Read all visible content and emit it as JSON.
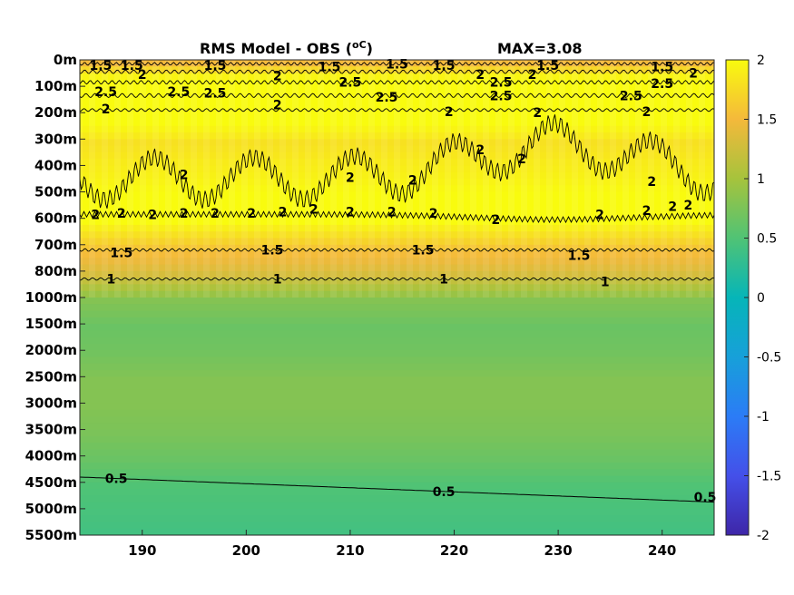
{
  "chart_data": {
    "type": "heatmap",
    "title": "RMS Model - OBS (",
    "title_unit": "oC",
    "title_close": ")",
    "max_label": "MAX=3.08",
    "x_ticks": [
      190,
      200,
      210,
      220,
      230,
      240
    ],
    "xlim": [
      184,
      245
    ],
    "y_ticks": [
      "0m",
      "100m",
      "200m",
      "300m",
      "400m",
      "500m",
      "600m",
      "700m",
      "800m",
      "1000m",
      "1500m",
      "2000m",
      "2500m",
      "3000m",
      "3500m",
      "4000m",
      "4500m",
      "5000m",
      "5500m"
    ],
    "colorbar": {
      "min": -2,
      "max": 2,
      "ticks": [
        "2",
        "1.5",
        "1",
        "0.5",
        "0",
        "-0.5",
        "-1",
        "-1.5",
        "-2"
      ]
    },
    "depth_profile": [
      {
        "depth": "0m",
        "value": 1.5
      },
      {
        "depth": "100m",
        "value": 2.4
      },
      {
        "depth": "200m",
        "value": 2.1
      },
      {
        "depth": "300m",
        "value": 1.8
      },
      {
        "depth": "400m",
        "value": 1.9
      },
      {
        "depth": "500m",
        "value": 2.0
      },
      {
        "depth": "600m",
        "value": 2.0
      },
      {
        "depth": "700m",
        "value": 1.6
      },
      {
        "depth": "800m",
        "value": 1.3
      },
      {
        "depth": "1000m",
        "value": 0.8
      },
      {
        "depth": "1500m",
        "value": 0.65
      },
      {
        "depth": "2000m",
        "value": 0.7
      },
      {
        "depth": "2500m",
        "value": 0.8
      },
      {
        "depth": "3000m",
        "value": 0.8
      },
      {
        "depth": "3500m",
        "value": 0.75
      },
      {
        "depth": "4000m",
        "value": 0.65
      },
      {
        "depth": "4500m",
        "value": 0.5
      },
      {
        "depth": "5000m",
        "value": 0.45
      },
      {
        "depth": "5500m",
        "value": 0.4
      }
    ],
    "contour_labels": [
      {
        "text": "1.5",
        "x": 186,
        "depth_index": 0.2
      },
      {
        "text": "1.5",
        "x": 189,
        "depth_index": 0.2
      },
      {
        "text": "1.5",
        "x": 197,
        "depth_index": 0.2
      },
      {
        "text": "1.5",
        "x": 208,
        "depth_index": 0.25
      },
      {
        "text": "1.5",
        "x": 214.5,
        "depth_index": 0.15
      },
      {
        "text": "1.5",
        "x": 219,
        "depth_index": 0.2
      },
      {
        "text": "1.5",
        "x": 229,
        "depth_index": 0.2
      },
      {
        "text": "1.5",
        "x": 240,
        "depth_index": 0.25
      },
      {
        "text": "2",
        "x": 243,
        "depth_index": 0.5
      },
      {
        "text": "2",
        "x": 190,
        "depth_index": 0.55
      },
      {
        "text": "2",
        "x": 203,
        "depth_index": 0.6
      },
      {
        "text": "2",
        "x": 222.5,
        "depth_index": 0.55
      },
      {
        "text": "2",
        "x": 227.5,
        "depth_index": 0.55
      },
      {
        "text": "2.5",
        "x": 186.5,
        "depth_index": 1.2
      },
      {
        "text": "2.5",
        "x": 193.5,
        "depth_index": 1.2
      },
      {
        "text": "2.5",
        "x": 197,
        "depth_index": 1.25
      },
      {
        "text": "2.5",
        "x": 210,
        "depth_index": 0.85
      },
      {
        "text": "2.5",
        "x": 213.5,
        "depth_index": 1.4
      },
      {
        "text": "2.5",
        "x": 224.5,
        "depth_index": 0.85
      },
      {
        "text": "2.5",
        "x": 224.5,
        "depth_index": 1.35
      },
      {
        "text": "2.5",
        "x": 237,
        "depth_index": 1.35
      },
      {
        "text": "2.5",
        "x": 240,
        "depth_index": 0.9
      },
      {
        "text": "2",
        "x": 186.5,
        "depth_index": 1.85
      },
      {
        "text": "2",
        "x": 203,
        "depth_index": 1.7
      },
      {
        "text": "2",
        "x": 219.5,
        "depth_index": 1.95
      },
      {
        "text": "2",
        "x": 228,
        "depth_index": 2.0
      },
      {
        "text": "2",
        "x": 238.5,
        "depth_index": 1.95
      },
      {
        "text": "2",
        "x": 222.5,
        "depth_index": 3.4
      },
      {
        "text": "2",
        "x": 226.5,
        "depth_index": 3.75
      },
      {
        "text": "2",
        "x": 194,
        "depth_index": 4.35
      },
      {
        "text": "2",
        "x": 210,
        "depth_index": 4.45
      },
      {
        "text": "2",
        "x": 216,
        "depth_index": 4.55
      },
      {
        "text": "2",
        "x": 239,
        "depth_index": 4.6
      },
      {
        "text": "2",
        "x": 185.5,
        "depth_index": 5.85
      },
      {
        "text": "2",
        "x": 188,
        "depth_index": 5.8
      },
      {
        "text": "2",
        "x": 191,
        "depth_index": 5.85
      },
      {
        "text": "2",
        "x": 194,
        "depth_index": 5.8
      },
      {
        "text": "2",
        "x": 197,
        "depth_index": 5.8
      },
      {
        "text": "2",
        "x": 200.5,
        "depth_index": 5.8
      },
      {
        "text": "2",
        "x": 203.5,
        "depth_index": 5.75
      },
      {
        "text": "2",
        "x": 206.5,
        "depth_index": 5.65
      },
      {
        "text": "2",
        "x": 210,
        "depth_index": 5.75
      },
      {
        "text": "2",
        "x": 214,
        "depth_index": 5.75
      },
      {
        "text": "2",
        "x": 218,
        "depth_index": 5.8
      },
      {
        "text": "2",
        "x": 224,
        "depth_index": 6.05
      },
      {
        "text": "2",
        "x": 234,
        "depth_index": 5.85
      },
      {
        "text": "2",
        "x": 238.5,
        "depth_index": 5.7
      },
      {
        "text": "2",
        "x": 241,
        "depth_index": 5.55
      },
      {
        "text": "2",
        "x": 242.5,
        "depth_index": 5.5
      },
      {
        "text": "1.5",
        "x": 188,
        "depth_index": 7.3
      },
      {
        "text": "1.5",
        "x": 202.5,
        "depth_index": 7.2
      },
      {
        "text": "1.5",
        "x": 217,
        "depth_index": 7.2
      },
      {
        "text": "1.5",
        "x": 232,
        "depth_index": 7.4
      },
      {
        "text": "1",
        "x": 187,
        "depth_index": 8.3
      },
      {
        "text": "1",
        "x": 203,
        "depth_index": 8.3
      },
      {
        "text": "1",
        "x": 219,
        "depth_index": 8.3
      },
      {
        "text": "1",
        "x": 234.5,
        "depth_index": 8.4
      },
      {
        "text": "0.5",
        "x": 187.5,
        "depth_index": 15.85
      },
      {
        "text": "0.5",
        "x": 219,
        "depth_index": 16.35
      },
      {
        "text": "0.5",
        "x": 245,
        "depth_index": 16.55
      }
    ]
  }
}
